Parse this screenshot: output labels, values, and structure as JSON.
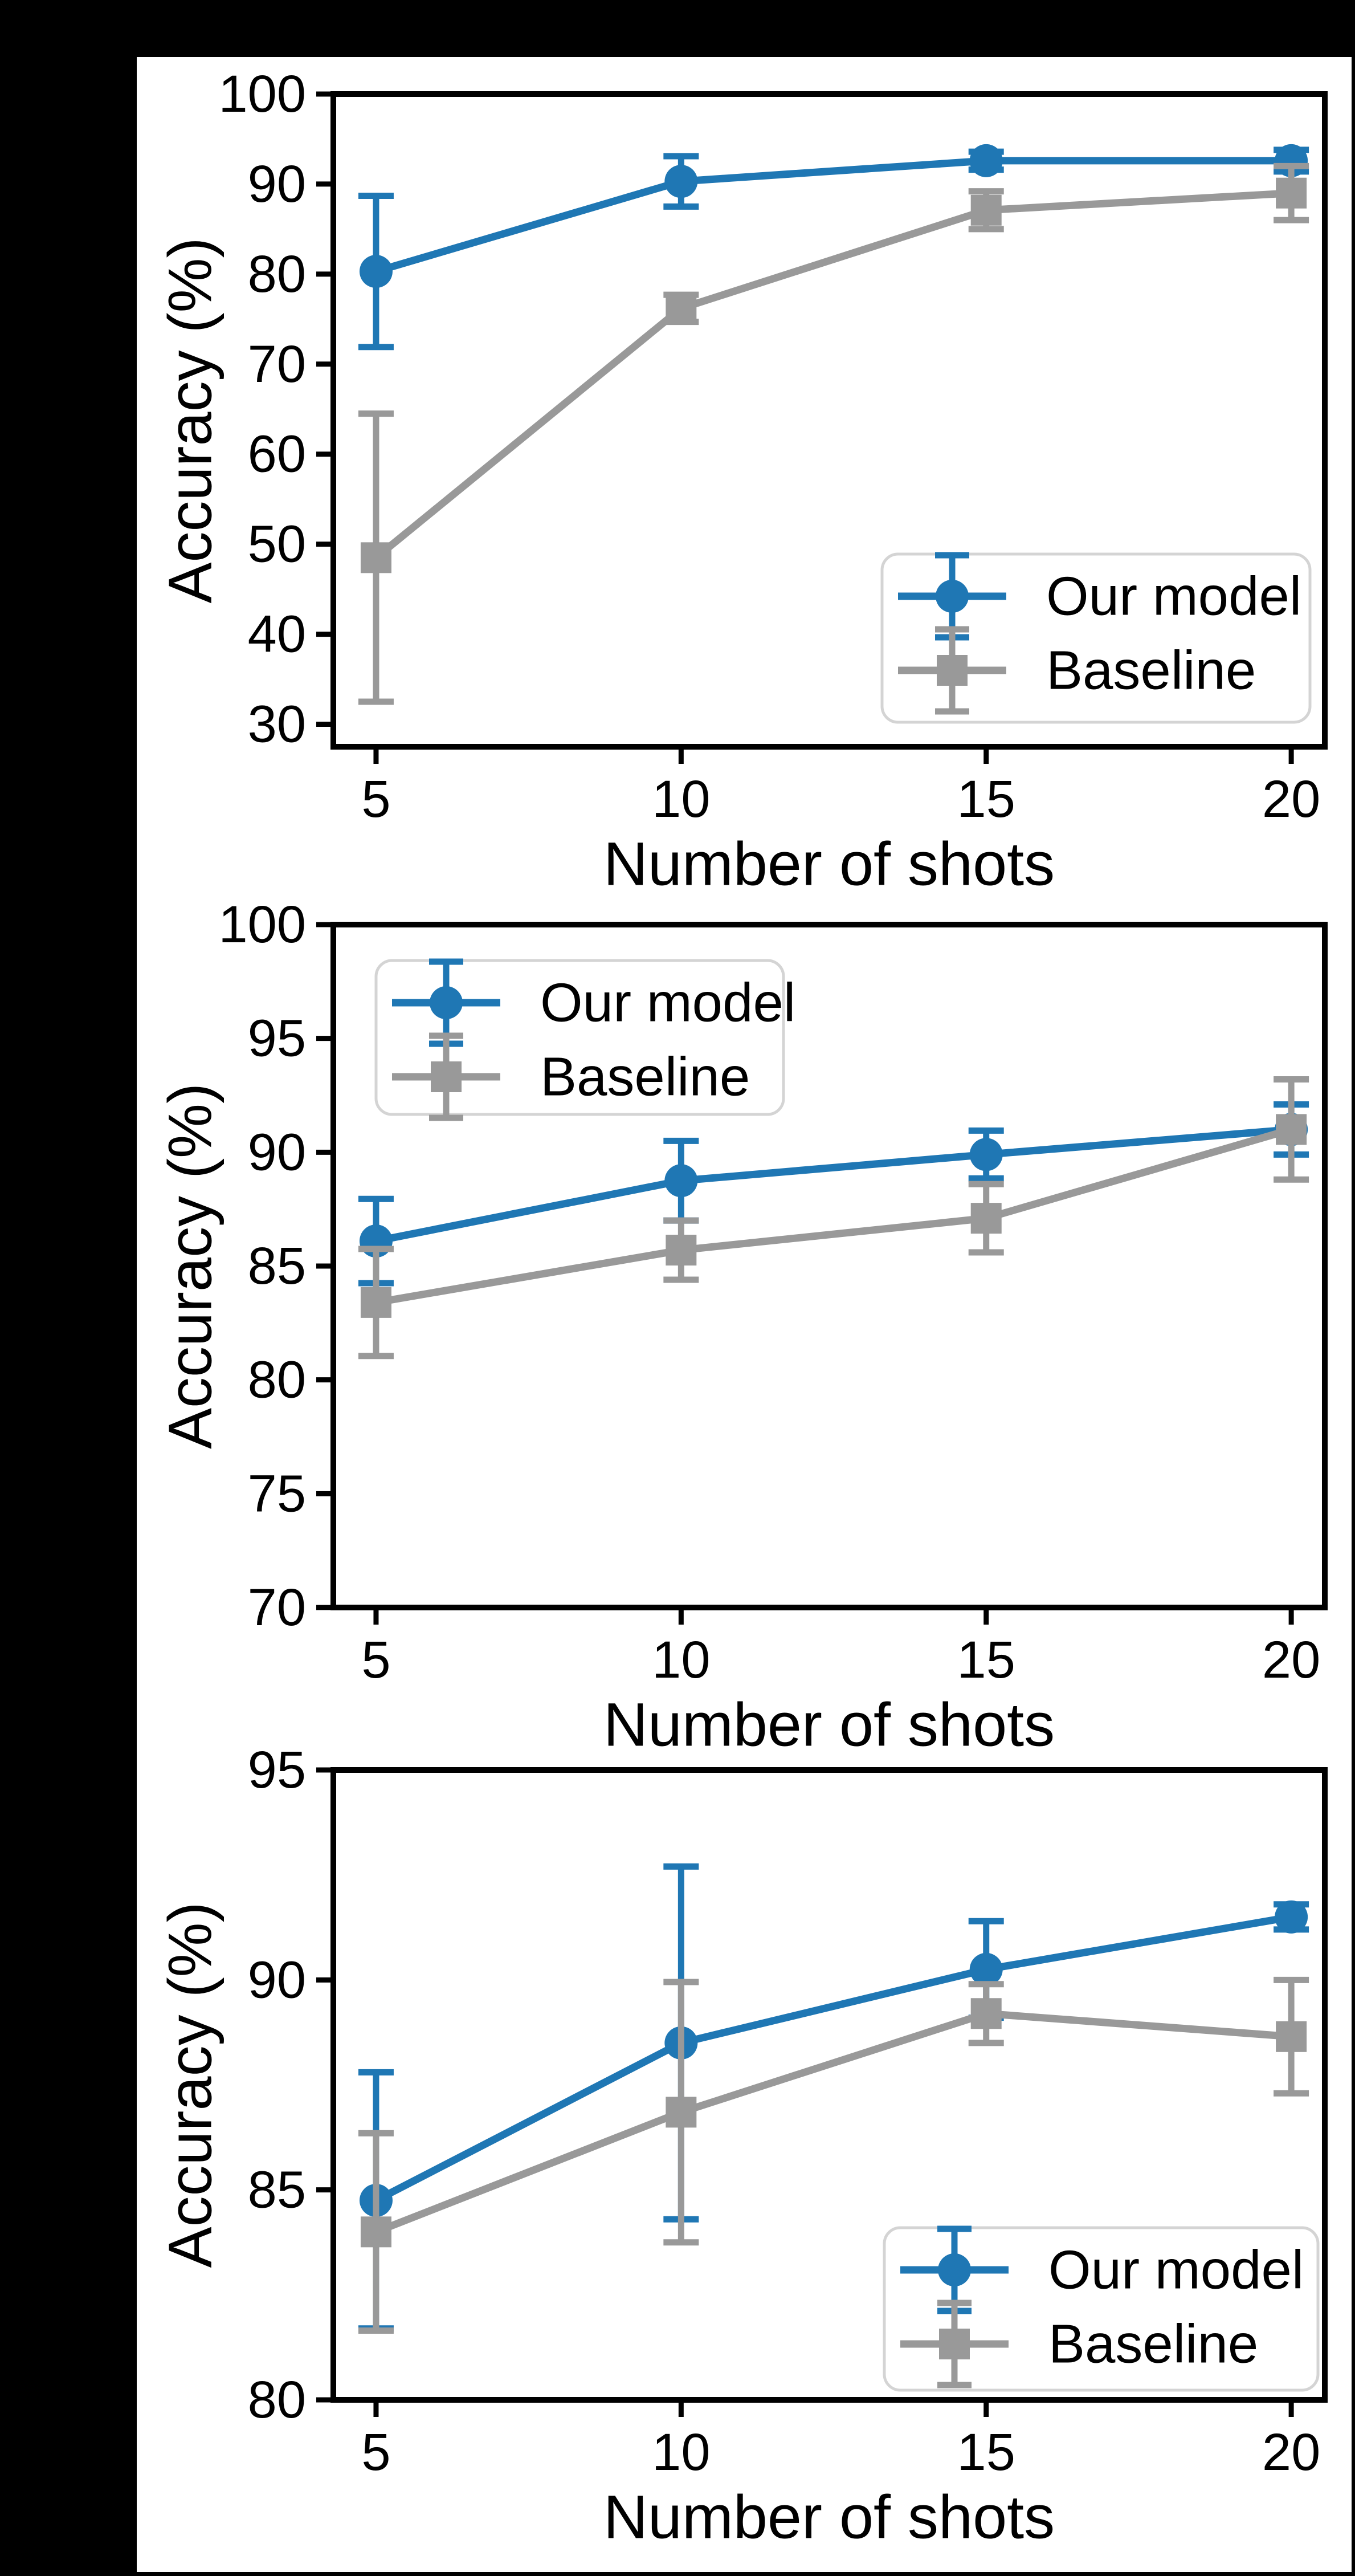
{
  "figure": {
    "background_color": "#000000",
    "panel_color": "#ffffff",
    "frame_color": "#000000",
    "legend_border_color": "#d4d4d4",
    "accent_blue": "#1f77b4",
    "accent_gray": "#999999"
  },
  "chart_data": [
    {
      "type": "line",
      "title": "",
      "xlabel": "Number of shots",
      "ylabel": "Accuracy (%)",
      "x": [
        5,
        10,
        15,
        20
      ],
      "xticks": [
        5,
        10,
        15,
        20
      ],
      "yticks": [
        30,
        40,
        50,
        60,
        70,
        80,
        90,
        100
      ],
      "xlim": [
        4.3,
        20.55
      ],
      "ylim": [
        27.5,
        100
      ],
      "grid": false,
      "legend_position": "lower right",
      "series": [
        {
          "name": "Our model",
          "marker": "circle",
          "color": "#1f77b4",
          "values": [
            80.3,
            90.3,
            92.6,
            92.6
          ],
          "errors": [
            8.4,
            2.8,
            1.0,
            1.2
          ]
        },
        {
          "name": "Baseline",
          "marker": "square",
          "color": "#999999",
          "values": [
            48.5,
            76.2,
            87.1,
            89.0
          ],
          "errors": [
            16.0,
            1.5,
            2.1,
            3.0
          ]
        }
      ]
    },
    {
      "type": "line",
      "title": "",
      "xlabel": "Number of shots",
      "ylabel": "Accuracy (%)",
      "x": [
        5,
        10,
        15,
        20
      ],
      "xticks": [
        5,
        10,
        15,
        20
      ],
      "yticks": [
        70,
        75,
        80,
        85,
        90,
        95,
        100
      ],
      "xlim": [
        4.3,
        20.55
      ],
      "ylim": [
        70,
        100
      ],
      "grid": false,
      "legend_position": "upper left",
      "series": [
        {
          "name": "Our model",
          "marker": "circle",
          "color": "#1f77b4",
          "values": [
            86.1,
            88.75,
            89.9,
            91.0
          ],
          "errors": [
            1.85,
            1.75,
            1.05,
            1.1
          ]
        },
        {
          "name": "Baseline",
          "marker": "square",
          "color": "#999999",
          "values": [
            83.4,
            85.7,
            87.1,
            91.0
          ],
          "errors": [
            2.35,
            1.3,
            1.5,
            2.2
          ]
        }
      ]
    },
    {
      "type": "line",
      "title": "",
      "xlabel": "Number of shots",
      "ylabel": "Accuracy (%)",
      "x": [
        5,
        10,
        15,
        20
      ],
      "xticks": [
        5,
        10,
        15,
        20
      ],
      "yticks": [
        80,
        85,
        90,
        95
      ],
      "xlim": [
        4.3,
        20.55
      ],
      "ylim": [
        80,
        95
      ],
      "grid": false,
      "legend_position": "lower right",
      "series": [
        {
          "name": "Our model",
          "marker": "circle",
          "color": "#1f77b4",
          "values": [
            84.75,
            88.5,
            90.25,
            91.5
          ],
          "errors": [
            3.05,
            4.2,
            1.15,
            0.3
          ]
        },
        {
          "name": "Baseline",
          "marker": "square",
          "color": "#999999",
          "values": [
            84.0,
            86.85,
            89.2,
            88.65
          ],
          "errors": [
            2.35,
            3.1,
            0.7,
            1.35
          ]
        }
      ]
    }
  ]
}
